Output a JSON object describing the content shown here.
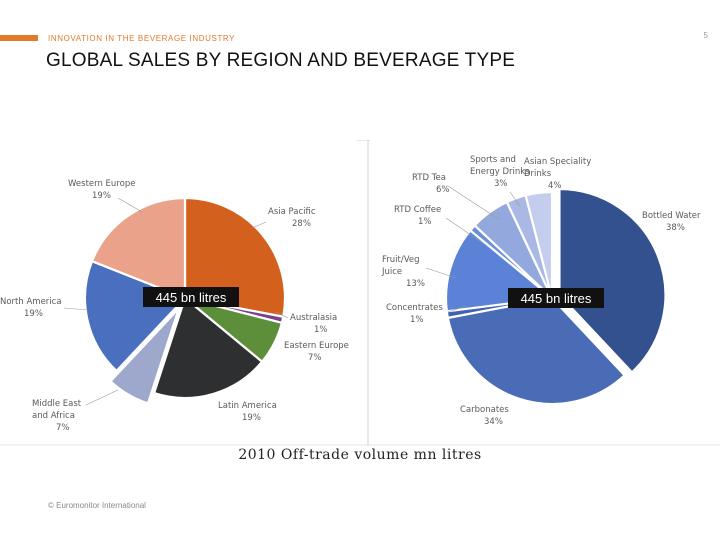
{
  "header": {
    "section_label": "INNOVATION IN THE BEVERAGE INDUSTRY",
    "page_number": "5",
    "title": "GLOBAL SALES BY REGION AND BEVERAGE TYPE"
  },
  "caption": "2010 Off-trade volume mn litres",
  "footer": "© Euromonitor International",
  "colors": {
    "accent": "#e27a2c"
  },
  "chart_data": [
    {
      "type": "pie",
      "center_label": "445 bn litres",
      "slices": [
        {
          "label": "Asia Pacific",
          "value": 28,
          "pct": "28%",
          "color": "#d4601e"
        },
        {
          "label": "Australasia",
          "value": 1,
          "pct": "1%",
          "color": "#7b3f8c"
        },
        {
          "label": "Eastern Europe",
          "value": 7,
          "pct": "7%",
          "color": "#5d8f3a"
        },
        {
          "label": "Latin America",
          "value": 19,
          "pct": "19%",
          "color": "#2d2f31"
        },
        {
          "label": "Middle East and Africa",
          "value": 7,
          "pct": "7%",
          "color": "#9ea8cc",
          "exploded": true
        },
        {
          "label": "North America",
          "value": 19,
          "pct": "19%",
          "color": "#4b6fbf"
        },
        {
          "label": "Western Europe",
          "value": 19,
          "pct": "19%",
          "color": "#eba28a"
        }
      ]
    },
    {
      "type": "pie",
      "center_label": "445 bn litres",
      "slices": [
        {
          "label": "Bottled Water",
          "value": 38,
          "pct": "38%",
          "color": "#34518f",
          "exploded": true
        },
        {
          "label": "Carbonates",
          "value": 34,
          "pct": "34%",
          "color": "#4a6cb6"
        },
        {
          "label": "Concentrates",
          "value": 1,
          "pct": "1%",
          "color": "#3f63b0"
        },
        {
          "label": "Fruit/Veg Juice",
          "value": 13,
          "pct": "13%",
          "color": "#5b82d6"
        },
        {
          "label": "RTD Coffee",
          "value": 1,
          "pct": "1%",
          "color": "#6b8ed8"
        },
        {
          "label": "RTD Tea",
          "value": 6,
          "pct": "6%",
          "color": "#93a8dc"
        },
        {
          "label": "Sports and Energy Drinks",
          "value": 3,
          "pct": "3%",
          "color": "#a9b8e4"
        },
        {
          "label": "Asian Speciality Drinks",
          "value": 4,
          "pct": "4%",
          "color": "#c4cdee"
        }
      ]
    }
  ]
}
